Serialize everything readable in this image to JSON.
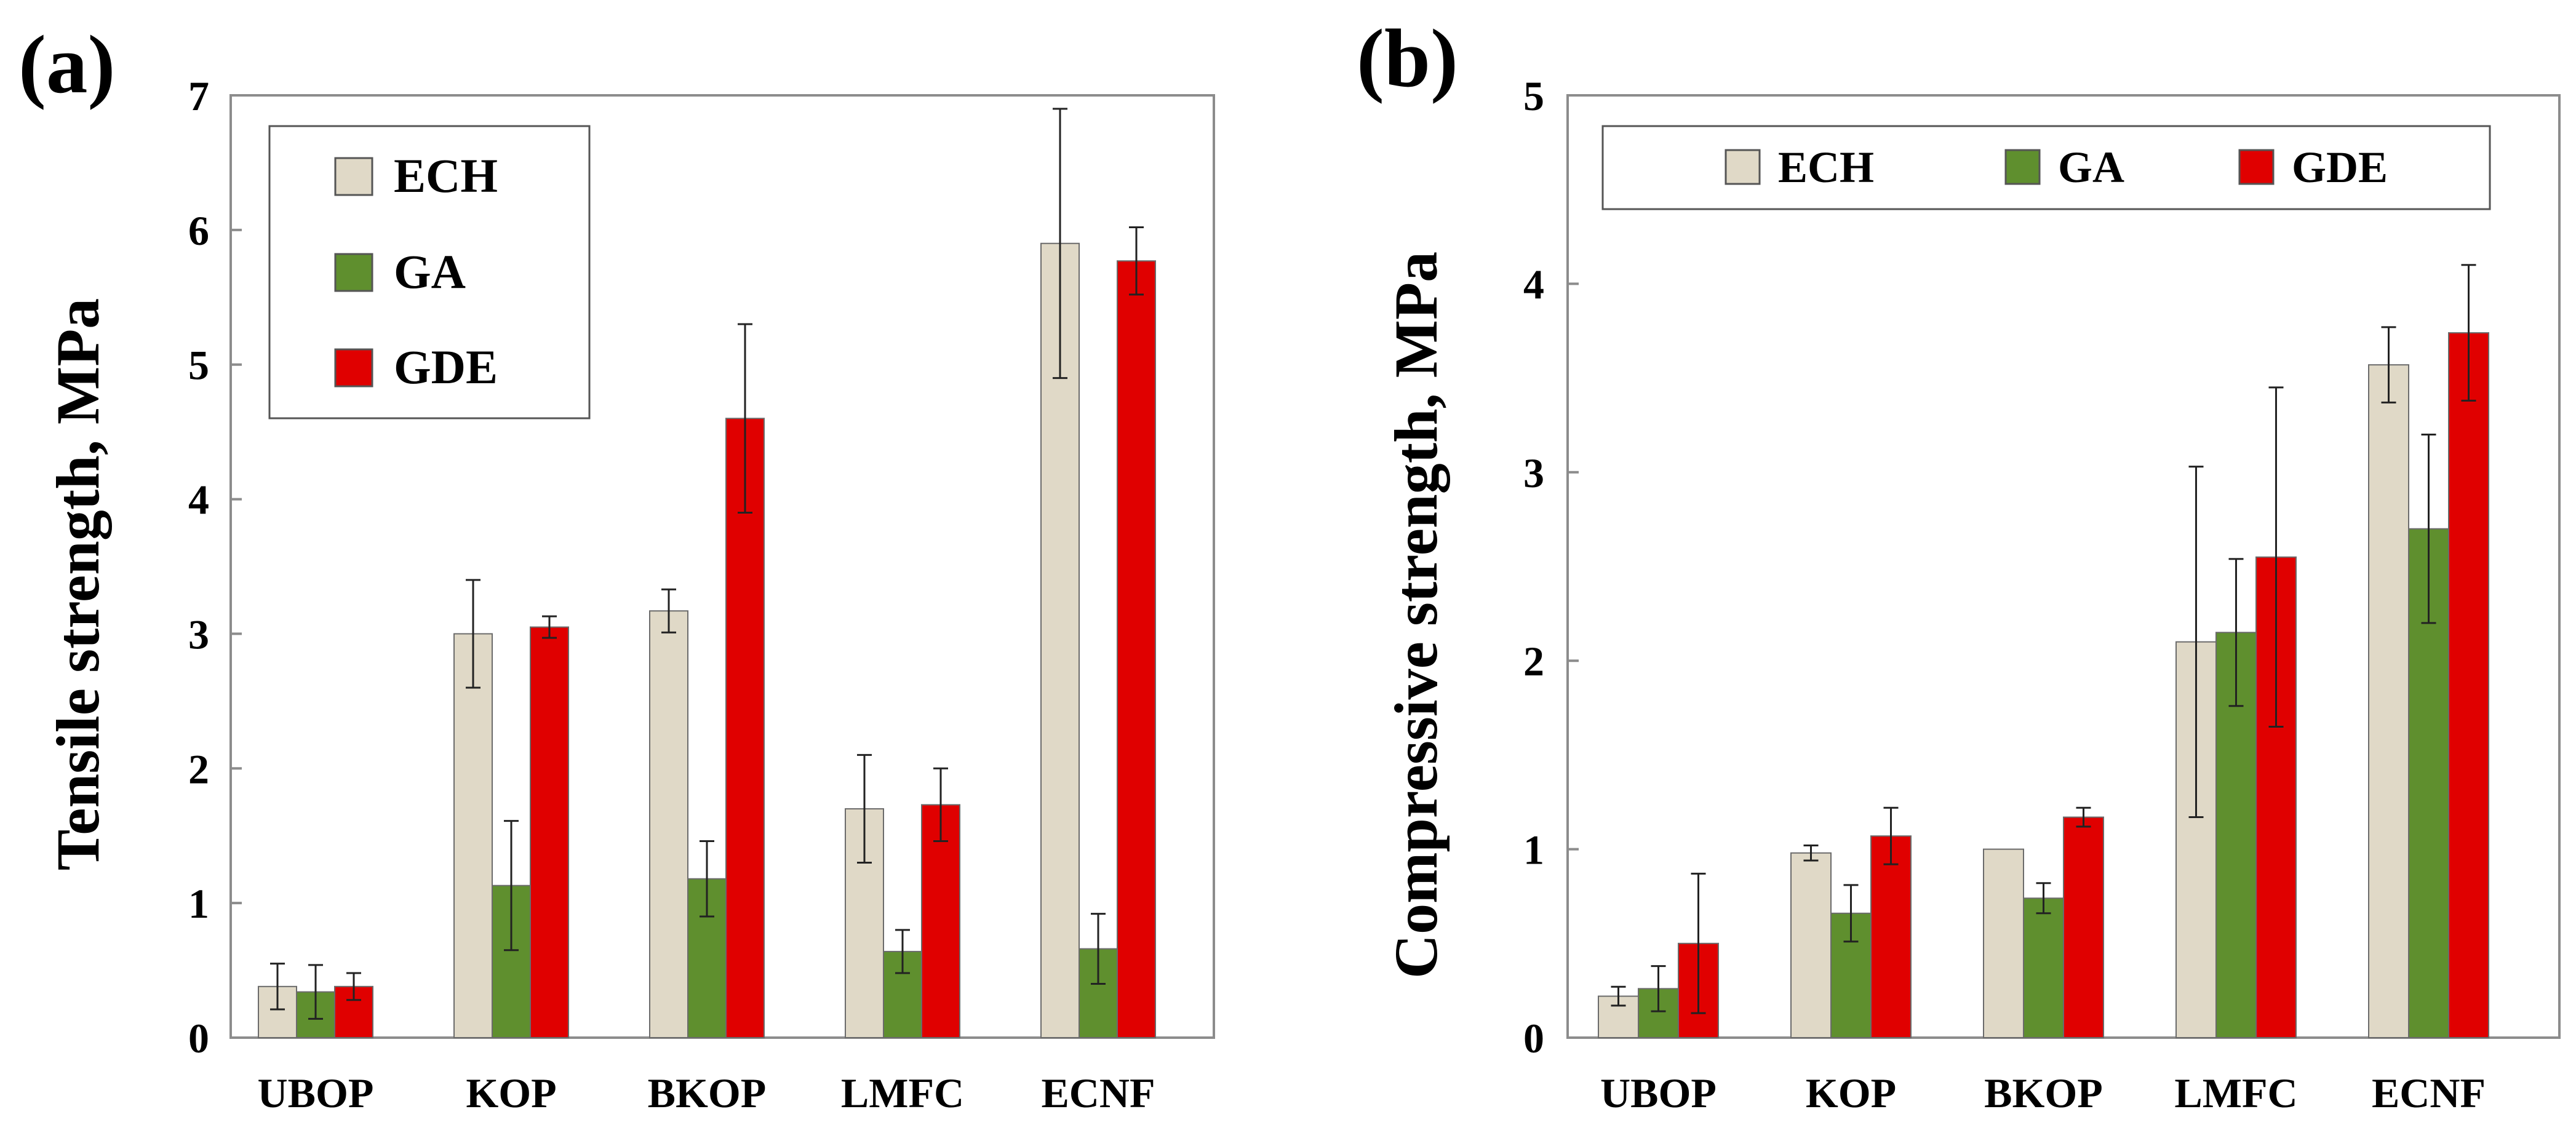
{
  "chart_data": [
    {
      "type": "bar",
      "panel_label": "(a)",
      "ylabel": "Tensile strength, MPa",
      "xlabel": "",
      "categories": [
        "UBOP",
        "KOP",
        "BKOP",
        "LMFC",
        "ECNF"
      ],
      "ylim": [
        0,
        7
      ],
      "yticks": [
        "0",
        "1",
        "2",
        "3",
        "4",
        "5",
        "6",
        "7"
      ],
      "grid": false,
      "legend_position": "top-left",
      "series": [
        {
          "name": "ECH",
          "color": "#e0d9c7",
          "values": [
            0.38,
            3.0,
            3.17,
            1.7,
            5.9
          ],
          "errors": [
            0.17,
            0.4,
            0.16,
            0.4,
            1.0
          ]
        },
        {
          "name": "GA",
          "color": "#5f8f2e",
          "values": [
            0.34,
            1.13,
            1.18,
            0.64,
            0.66
          ],
          "errors": [
            0.2,
            0.48,
            0.28,
            0.16,
            0.26
          ]
        },
        {
          "name": "GDE",
          "color": "#e00000",
          "values": [
            0.38,
            3.05,
            4.6,
            1.73,
            5.77
          ],
          "errors": [
            0.1,
            0.08,
            0.7,
            0.27,
            0.25
          ]
        }
      ]
    },
    {
      "type": "bar",
      "panel_label": "(b)",
      "ylabel": "Compressive strength, MPa",
      "xlabel": "",
      "categories": [
        "UBOP",
        "KOP",
        "BKOP",
        "LMFC",
        "ECNF"
      ],
      "ylim": [
        0,
        5
      ],
      "yticks": [
        "0",
        "1",
        "2",
        "3",
        "4",
        "5"
      ],
      "grid": false,
      "legend_position": "top",
      "series": [
        {
          "name": "ECH",
          "color": "#e0d9c7",
          "values": [
            0.22,
            0.98,
            1.0,
            2.1,
            3.57
          ],
          "errors": [
            0.05,
            0.04,
            0.0,
            0.93,
            0.2
          ]
        },
        {
          "name": "GA",
          "color": "#5f8f2e",
          "values": [
            0.26,
            0.66,
            0.74,
            2.15,
            2.7
          ],
          "errors": [
            0.12,
            0.15,
            0.08,
            0.39,
            0.5
          ]
        },
        {
          "name": "GDE",
          "color": "#e00000",
          "values": [
            0.5,
            1.07,
            1.17,
            2.55,
            3.74
          ],
          "errors": [
            0.37,
            0.15,
            0.05,
            0.9,
            0.36
          ]
        }
      ]
    }
  ]
}
